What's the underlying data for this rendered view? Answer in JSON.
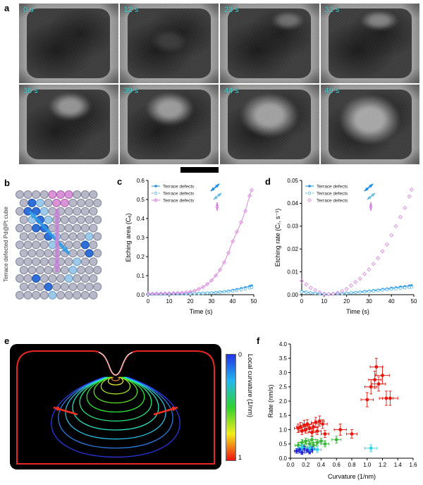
{
  "panel_labels": {
    "a": "a",
    "b": "b",
    "c": "c",
    "d": "d",
    "e": "e",
    "f": "f"
  },
  "panel_a": {
    "timestamps": [
      "0 s",
      "12 s",
      "23 s",
      "31 s",
      "36 s",
      "39 s",
      "44 s",
      "49 s"
    ]
  },
  "panel_b": {
    "caption": "Terrace defected Pd@Pt cube"
  },
  "panel_e": {
    "colorbar": {
      "label": "Local curvature (1/nm)",
      "top_tick": "0",
      "bottom_tick": "1"
    }
  },
  "chart_data": [
    {
      "panel": "c",
      "type": "line",
      "xlabel": "Time (s)",
      "ylabel": "Etching area (Cₐ)",
      "xlim": [
        0,
        50
      ],
      "ylim": [
        0,
        0.6
      ],
      "xticks": [
        0,
        10,
        20,
        30,
        40,
        50
      ],
      "xtick_labels": [
        "0",
        "10",
        "20",
        "30",
        "40",
        "50"
      ],
      "yticks": [
        0,
        0.1,
        0.2,
        0.3,
        0.4,
        0.5,
        0.6
      ],
      "ytick_labels": [
        "0.0",
        "0.1",
        "0.2",
        "0.3",
        "0.4",
        "0.5",
        "0.6"
      ],
      "legend_position": "top-left",
      "x": [
        0,
        2,
        4,
        6,
        8,
        10,
        12,
        14,
        16,
        18,
        20,
        22,
        24,
        26,
        28,
        30,
        32,
        34,
        36,
        38,
        40,
        42,
        44,
        46,
        48,
        49
      ],
      "series": [
        {
          "name": "Terrace defects",
          "color": "#1d8fe8",
          "marker": "circle-filled",
          "line": "solid",
          "values": [
            0.003,
            0.003,
            0.004,
            0.004,
            0.004,
            0.005,
            0.005,
            0.005,
            0.006,
            0.006,
            0.007,
            0.007,
            0.008,
            0.009,
            0.01,
            0.011,
            0.013,
            0.015,
            0.017,
            0.02,
            0.024,
            0.028,
            0.033,
            0.038,
            0.044,
            0.047
          ]
        },
        {
          "name": "Terrace defects",
          "color": "#5bbcf0",
          "marker": "circle-open",
          "line": "dashed",
          "values": [
            0.002,
            0.002,
            0.003,
            0.003,
            0.003,
            0.004,
            0.004,
            0.004,
            0.005,
            0.005,
            0.005,
            0.006,
            0.006,
            0.007,
            0.008,
            0.009,
            0.01,
            0.012,
            0.014,
            0.016,
            0.019,
            0.022,
            0.026,
            0.03,
            0.035,
            0.038
          ]
        },
        {
          "name": "Terrace defects",
          "color": "#da8bdf",
          "marker": "diamond-open",
          "line": "solid",
          "values": [
            0.005,
            0.005,
            0.006,
            0.006,
            0.007,
            0.007,
            0.008,
            0.009,
            0.01,
            0.012,
            0.015,
            0.02,
            0.03,
            0.04,
            0.055,
            0.075,
            0.1,
            0.13,
            0.17,
            0.22,
            0.28,
            0.33,
            0.38,
            0.44,
            0.52,
            0.55
          ]
        }
      ]
    },
    {
      "panel": "d",
      "type": "line",
      "xlabel": "Time (s)",
      "ylabel": "Etching rate (Cᵣ, s⁻¹)",
      "xlim": [
        0,
        50
      ],
      "ylim": [
        0,
        0.05
      ],
      "xticks": [
        0,
        10,
        20,
        30,
        40,
        50
      ],
      "xtick_labels": [
        "0",
        "10",
        "20",
        "30",
        "40",
        "50"
      ],
      "yticks": [
        0,
        0.01,
        0.02,
        0.03,
        0.04,
        0.05
      ],
      "ytick_labels": [
        "0.00",
        "0.01",
        "0.02",
        "0.03",
        "0.04",
        "0.05"
      ],
      "legend_position": "top-left",
      "x": [
        0,
        2,
        4,
        6,
        8,
        10,
        12,
        14,
        16,
        18,
        20,
        22,
        24,
        26,
        28,
        30,
        32,
        34,
        36,
        38,
        40,
        42,
        44,
        46,
        48,
        49
      ],
      "series": [
        {
          "name": "Terrace defects",
          "color": "#1d8fe8",
          "marker": "circle-filled",
          "line": "solid",
          "values": [
            0.0015,
            0.0012,
            0.0009,
            0.0007,
            0.0005,
            0.0003,
            0.0003,
            0.0004,
            0.0005,
            0.0006,
            0.0008,
            0.0009,
            0.0011,
            0.0013,
            0.0015,
            0.0017,
            0.0019,
            0.0021,
            0.0024,
            0.0026,
            0.0029,
            0.0031,
            0.0034,
            0.0036,
            0.0039,
            0.004
          ]
        },
        {
          "name": "Terrace defects",
          "color": "#5bbcf0",
          "marker": "circle-open",
          "line": "dashed",
          "values": [
            0.0012,
            0.001,
            0.0008,
            0.0006,
            0.0004,
            0.0002,
            0.0002,
            0.0003,
            0.0004,
            0.0005,
            0.0006,
            0.0008,
            0.0009,
            0.0011,
            0.0012,
            0.0014,
            0.0016,
            0.0018,
            0.002,
            0.0022,
            0.0024,
            0.0026,
            0.0028,
            0.003,
            0.0032,
            0.0033
          ]
        },
        {
          "name": "Terrace defects",
          "color": "#da8bdf",
          "marker": "diamond-open",
          "line": "none",
          "values": [
            0.006,
            0.0045,
            0.003,
            0.002,
            0.001,
            0.0004,
            0.0002,
            0.0004,
            0.0008,
            0.0015,
            0.0025,
            0.004,
            0.0055,
            0.007,
            0.009,
            0.011,
            0.0135,
            0.016,
            0.019,
            0.022,
            0.026,
            0.03,
            0.034,
            0.038,
            0.043,
            0.046
          ]
        }
      ]
    },
    {
      "panel": "f",
      "type": "scatter",
      "xlabel": "Curvature (1/nm)",
      "ylabel": "Rate (nm/s)",
      "xlim": [
        0,
        1.6
      ],
      "ylim": [
        0,
        4.0
      ],
      "xticks": [
        0,
        0.2,
        0.4,
        0.6,
        0.8,
        1.0,
        1.2,
        1.4,
        1.6
      ],
      "xtick_labels": [
        "0.0",
        "0.2",
        "0.4",
        "0.6",
        "0.8",
        "1.0",
        "1.2",
        "1.4",
        "1.6"
      ],
      "yticks": [
        0,
        0.5,
        1.0,
        1.5,
        2.0,
        2.5,
        3.0,
        3.5,
        4.0
      ],
      "ytick_labels": [
        "0.0",
        "0.5",
        "1.0",
        "1.5",
        "2.0",
        "2.5",
        "3.0",
        "3.5",
        "4.0"
      ],
      "point_format": "x, y, xerr, yerr",
      "groups": [
        {
          "name": "red",
          "color": "#e8150c",
          "points": [
            [
              0.1,
              1.05,
              0.05,
              0.15
            ],
            [
              0.13,
              1.1,
              0.05,
              0.15
            ],
            [
              0.15,
              0.95,
              0.04,
              0.12
            ],
            [
              0.18,
              1.15,
              0.05,
              0.18
            ],
            [
              0.2,
              1.0,
              0.05,
              0.12
            ],
            [
              0.22,
              1.2,
              0.06,
              0.15
            ],
            [
              0.25,
              1.05,
              0.05,
              0.12
            ],
            [
              0.28,
              0.9,
              0.05,
              0.12
            ],
            [
              0.3,
              1.1,
              0.06,
              0.15
            ],
            [
              0.33,
              1.25,
              0.06,
              0.18
            ],
            [
              0.35,
              0.95,
              0.05,
              0.12
            ],
            [
              0.38,
              1.3,
              0.06,
              0.18
            ],
            [
              0.42,
              1.2,
              0.06,
              0.15
            ],
            [
              0.45,
              0.85,
              0.05,
              0.12
            ],
            [
              0.65,
              1.0,
              0.08,
              0.2
            ],
            [
              0.8,
              0.85,
              0.07,
              0.15
            ],
            [
              1.0,
              2.05,
              0.08,
              0.25
            ],
            [
              1.05,
              2.5,
              0.08,
              0.25
            ],
            [
              1.1,
              2.75,
              0.08,
              0.3
            ],
            [
              1.12,
              3.2,
              0.08,
              0.3
            ],
            [
              1.15,
              2.6,
              0.09,
              0.25
            ],
            [
              1.2,
              2.9,
              0.09,
              0.3
            ],
            [
              1.25,
              2.1,
              0.09,
              0.25
            ],
            [
              1.3,
              2.1,
              0.1,
              0.25
            ]
          ]
        },
        {
          "name": "green",
          "color": "#37b837",
          "points": [
            [
              0.1,
              0.45,
              0.04,
              0.1
            ],
            [
              0.15,
              0.55,
              0.04,
              0.1
            ],
            [
              0.18,
              0.4,
              0.04,
              0.08
            ],
            [
              0.2,
              0.6,
              0.04,
              0.1
            ],
            [
              0.25,
              0.5,
              0.04,
              0.1
            ],
            [
              0.28,
              0.65,
              0.05,
              0.1
            ],
            [
              0.3,
              0.45,
              0.04,
              0.08
            ],
            [
              0.35,
              0.55,
              0.05,
              0.1
            ],
            [
              0.4,
              0.6,
              0.05,
              0.1
            ],
            [
              0.45,
              0.5,
              0.05,
              0.1
            ],
            [
              0.6,
              0.65,
              0.06,
              0.12
            ]
          ]
        },
        {
          "name": "blue",
          "color": "#2626d8",
          "points": [
            [
              0.08,
              0.25,
              0.03,
              0.08
            ],
            [
              0.12,
              0.3,
              0.04,
              0.08
            ],
            [
              0.15,
              0.2,
              0.04,
              0.07
            ],
            [
              0.18,
              0.35,
              0.04,
              0.08
            ],
            [
              0.22,
              0.28,
              0.04,
              0.07
            ],
            [
              0.25,
              0.22,
              0.04,
              0.07
            ],
            [
              0.28,
              0.32,
              0.04,
              0.08
            ]
          ]
        },
        {
          "name": "cyan",
          "color": "#32d2e8",
          "points": [
            [
              0.15,
              0.38,
              0.05,
              0.1
            ],
            [
              0.25,
              0.35,
              0.05,
              0.1
            ],
            [
              0.35,
              0.3,
              0.05,
              0.1
            ],
            [
              1.05,
              0.35,
              0.08,
              0.12
            ]
          ]
        }
      ]
    }
  ]
}
